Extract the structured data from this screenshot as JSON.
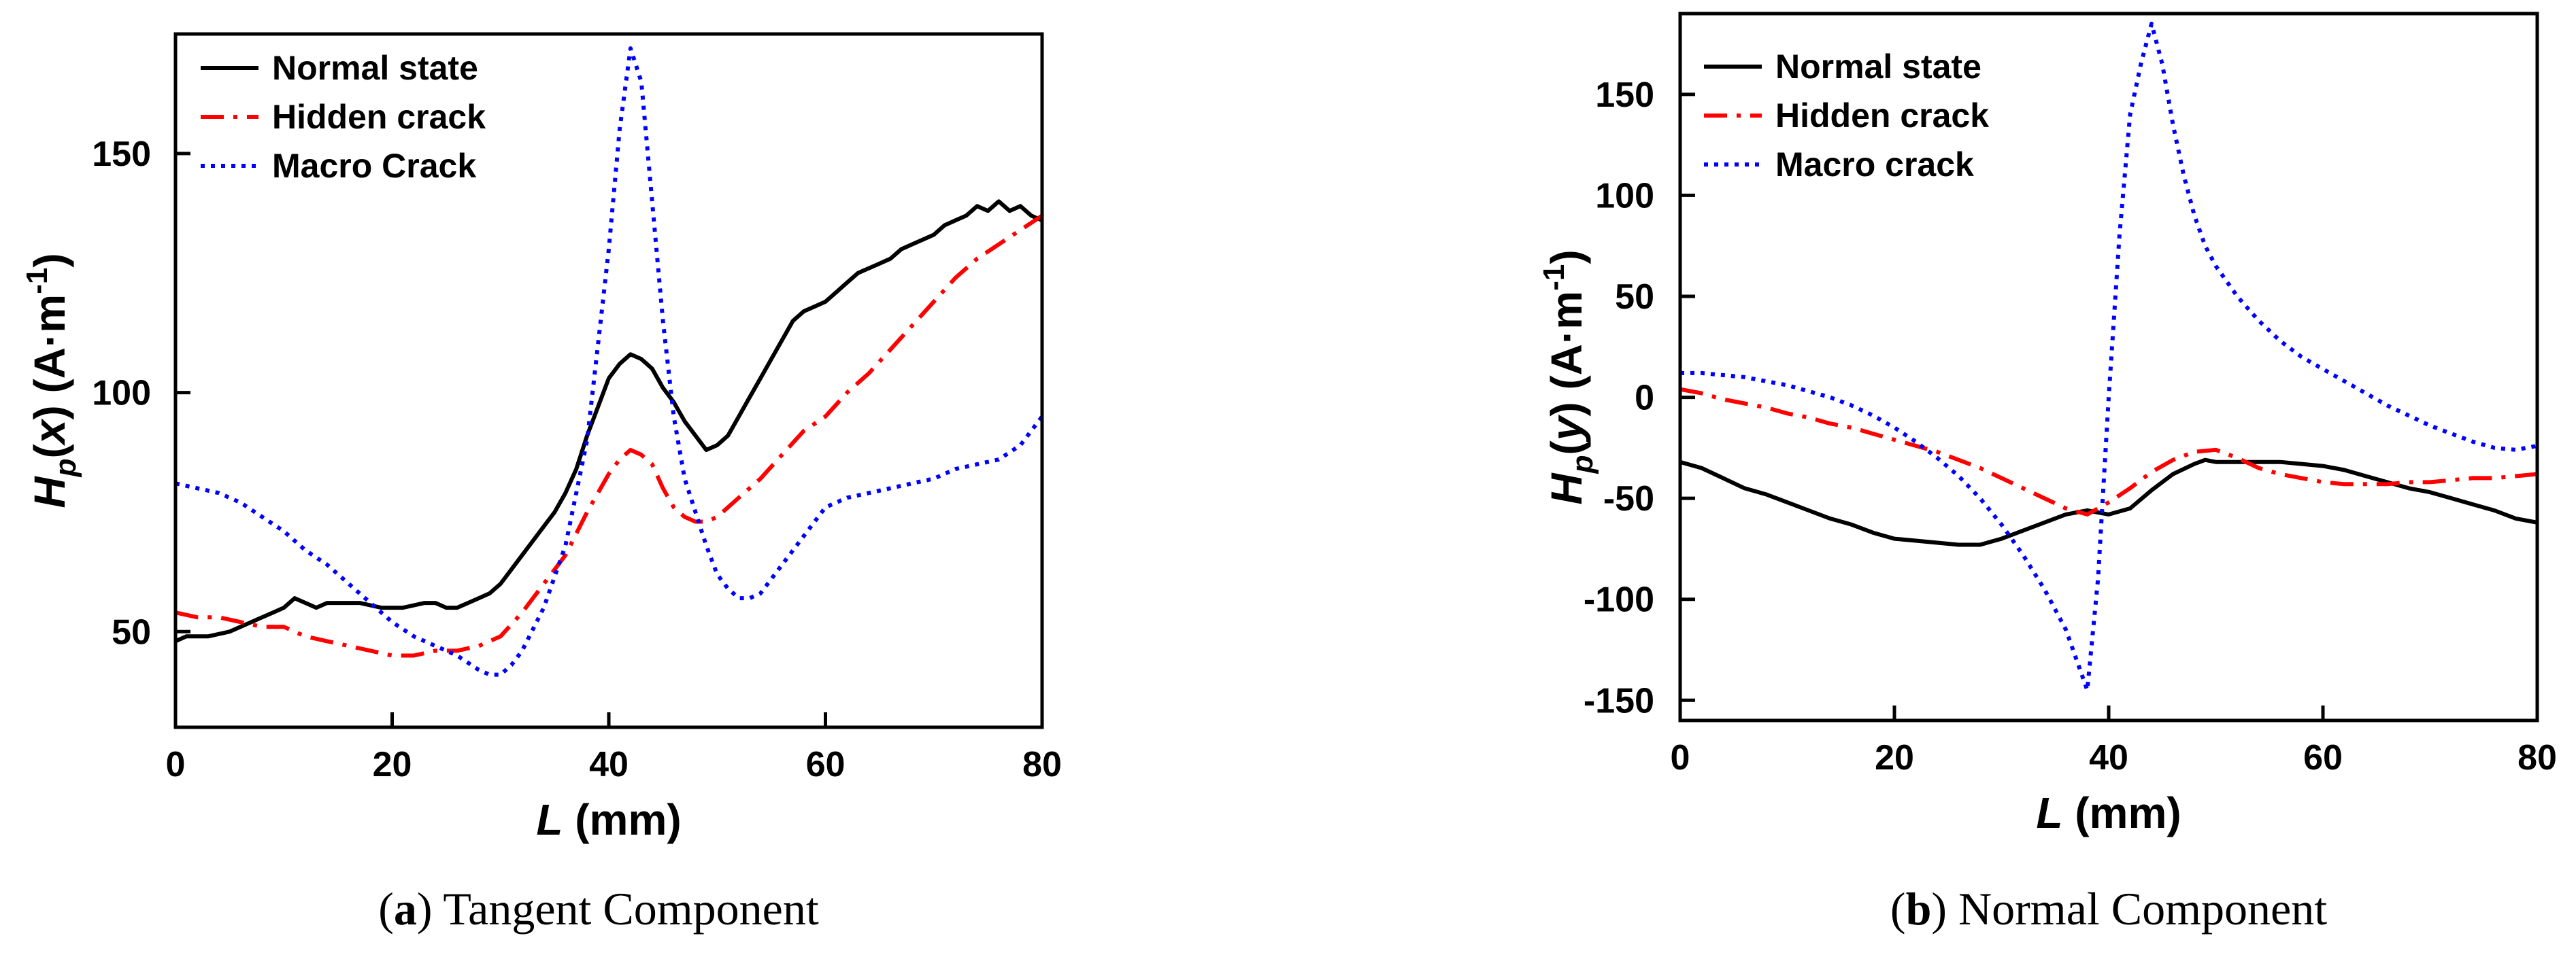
{
  "chart_data": [
    {
      "type": "line",
      "panel": "a",
      "caption": {
        "letter": "a",
        "text": " Tangent Component"
      },
      "title": "",
      "xlabel": {
        "var": "L",
        "unit": " (mm)"
      },
      "ylabel": {
        "var": "H",
        "sub": "p",
        "arg": "x",
        "unit": "(A·m",
        "exp": "-1",
        "close": ")"
      },
      "xlim": [
        0,
        80
      ],
      "ylim": [
        30,
        175
      ],
      "xticks": [
        0,
        20,
        40,
        60,
        80
      ],
      "yticks": [
        50,
        100,
        150
      ],
      "legend_position": "top-left",
      "grid": false,
      "series": [
        {
          "name": "Normal state",
          "color": "#000000",
          "dash": "solid",
          "x": [
            0,
            1,
            3,
            5,
            7,
            9,
            10,
            11,
            12,
            13,
            14,
            15,
            17,
            19,
            21,
            23,
            24,
            25,
            26,
            27,
            28,
            29,
            30,
            31,
            32,
            33,
            34,
            35,
            36,
            37,
            38,
            39,
            40,
            41,
            42,
            43,
            44,
            45,
            46,
            47,
            48,
            49,
            50,
            51,
            52,
            53,
            54,
            55,
            56,
            57,
            58,
            59,
            60,
            61,
            62,
            63,
            64,
            65,
            66,
            67,
            68,
            69,
            70,
            71,
            72,
            73,
            74,
            75,
            76,
            77,
            78,
            79,
            80
          ],
          "y": [
            48,
            49,
            49,
            50,
            52,
            54,
            55,
            57,
            56,
            55,
            56,
            56,
            56,
            55,
            55,
            56,
            56,
            55,
            55,
            56,
            57,
            58,
            60,
            63,
            66,
            69,
            72,
            75,
            79,
            84,
            91,
            97,
            103,
            106,
            108,
            107,
            105,
            101,
            98,
            94,
            91,
            88,
            89,
            91,
            95,
            99,
            103,
            107,
            111,
            115,
            117,
            118,
            119,
            121,
            123,
            125,
            126,
            127,
            128,
            130,
            131,
            132,
            133,
            135,
            136,
            137,
            139,
            138,
            140,
            138,
            139,
            137,
            136
          ]
        },
        {
          "name": "Hidden crack",
          "color": "#ff0000",
          "dash": "dashdot",
          "x": [
            0,
            2,
            4,
            6,
            8,
            10,
            12,
            14,
            16,
            18,
            20,
            22,
            24,
            26,
            28,
            30,
            32,
            34,
            36,
            38,
            40,
            41,
            42,
            43,
            44,
            45,
            46,
            47,
            48,
            49,
            50,
            52,
            54,
            56,
            58,
            60,
            62,
            64,
            66,
            68,
            70,
            72,
            74,
            76,
            78,
            80
          ],
          "y": [
            54,
            53,
            53,
            52,
            51,
            51,
            49,
            48,
            47,
            46,
            45,
            45,
            46,
            46,
            47,
            49,
            54,
            60,
            66,
            75,
            83,
            86,
            88,
            87,
            85,
            80,
            76,
            74,
            73,
            73,
            74,
            78,
            82,
            87,
            92,
            95,
            100,
            104,
            109,
            114,
            119,
            124,
            128,
            131,
            134,
            137
          ]
        },
        {
          "name": "Macro Crack",
          "color": "#0000ff",
          "dash": "dotted",
          "x": [
            0,
            2,
            4,
            6,
            8,
            10,
            12,
            14,
            16,
            18,
            20,
            22,
            24,
            26,
            28,
            29,
            30,
            31,
            32,
            34,
            36,
            38,
            39,
            40,
            41,
            42,
            43,
            44,
            45,
            46,
            47,
            48,
            49,
            50,
            51,
            52,
            53,
            54,
            55,
            56,
            58,
            60,
            62,
            64,
            66,
            68,
            70,
            72,
            74,
            76,
            78,
            80
          ],
          "y": [
            81,
            80,
            79,
            77,
            74,
            71,
            67,
            64,
            60,
            56,
            52,
            49,
            47,
            45,
            42,
            41,
            41,
            43,
            46,
            55,
            68,
            90,
            110,
            130,
            155,
            172,
            165,
            140,
            115,
            95,
            82,
            75,
            68,
            62,
            59,
            57,
            57,
            58,
            61,
            64,
            70,
            76,
            78,
            79,
            80,
            81,
            82,
            84,
            85,
            86,
            89,
            95
          ]
        }
      ]
    },
    {
      "type": "line",
      "panel": "b",
      "caption": {
        "letter": "b",
        "text": " Normal Component"
      },
      "title": "",
      "xlabel": {
        "var": "L",
        "unit": " (mm)"
      },
      "ylabel": {
        "var": "H",
        "sub": "p",
        "arg": "y",
        "unit": "(A·m",
        "exp": "-1",
        "close": ")"
      },
      "xlim": [
        0,
        80
      ],
      "ylim": [
        -160,
        190
      ],
      "xticks": [
        0,
        20,
        40,
        60,
        80
      ],
      "yticks": [
        -150,
        -100,
        -50,
        0,
        50,
        100,
        150
      ],
      "legend_position": "top-left",
      "grid": false,
      "series": [
        {
          "name": "Normal state",
          "color": "#000000",
          "dash": "solid",
          "x": [
            0,
            2,
            4,
            6,
            8,
            10,
            12,
            14,
            16,
            18,
            20,
            22,
            24,
            26,
            28,
            30,
            32,
            34,
            36,
            38,
            40,
            42,
            44,
            46,
            48,
            49,
            50,
            52,
            54,
            56,
            58,
            60,
            62,
            64,
            66,
            68,
            70,
            72,
            74,
            76,
            78,
            80
          ],
          "y": [
            -32,
            -35,
            -40,
            -45,
            -48,
            -52,
            -56,
            -60,
            -63,
            -67,
            -70,
            -71,
            -72,
            -73,
            -73,
            -70,
            -66,
            -62,
            -58,
            -56,
            -58,
            -55,
            -46,
            -38,
            -33,
            -31,
            -32,
            -32,
            -32,
            -32,
            -33,
            -34,
            -36,
            -39,
            -42,
            -45,
            -47,
            -50,
            -53,
            -56,
            -60,
            -62
          ]
        },
        {
          "name": "Hidden crack",
          "color": "#ff0000",
          "dash": "dashdot",
          "x": [
            0,
            2,
            4,
            6,
            8,
            10,
            12,
            14,
            16,
            18,
            20,
            22,
            24,
            26,
            28,
            30,
            32,
            34,
            36,
            38,
            40,
            42,
            44,
            46,
            48,
            50,
            52,
            54,
            56,
            58,
            60,
            62,
            64,
            66,
            68,
            70,
            72,
            74,
            76,
            78,
            80
          ],
          "y": [
            4,
            2,
            -1,
            -3,
            -5,
            -8,
            -10,
            -13,
            -15,
            -18,
            -21,
            -24,
            -27,
            -31,
            -35,
            -40,
            -45,
            -50,
            -55,
            -58,
            -52,
            -45,
            -37,
            -31,
            -27,
            -26,
            -30,
            -35,
            -38,
            -40,
            -42,
            -43,
            -43,
            -43,
            -42,
            -42,
            -41,
            -40,
            -40,
            -39,
            -38
          ]
        },
        {
          "name": "Macro crack",
          "color": "#0000ff",
          "dash": "dotted",
          "x": [
            0,
            2,
            4,
            6,
            8,
            10,
            12,
            14,
            16,
            18,
            20,
            22,
            24,
            26,
            28,
            30,
            32,
            34,
            36,
            37,
            38,
            39,
            40,
            41,
            42,
            43,
            44,
            45,
            46,
            47,
            48,
            49,
            50,
            52,
            54,
            56,
            58,
            60,
            62,
            64,
            66,
            68,
            70,
            72,
            74,
            76,
            78,
            80
          ],
          "y": [
            12,
            12,
            11,
            10,
            8,
            6,
            3,
            0,
            -4,
            -9,
            -15,
            -22,
            -30,
            -39,
            -50,
            -63,
            -78,
            -95,
            -115,
            -130,
            -145,
            -90,
            0,
            80,
            140,
            165,
            185,
            165,
            135,
            110,
            90,
            75,
            65,
            50,
            38,
            28,
            20,
            14,
            8,
            2,
            -4,
            -9,
            -14,
            -18,
            -22,
            -25,
            -26,
            -24
          ]
        }
      ]
    }
  ]
}
